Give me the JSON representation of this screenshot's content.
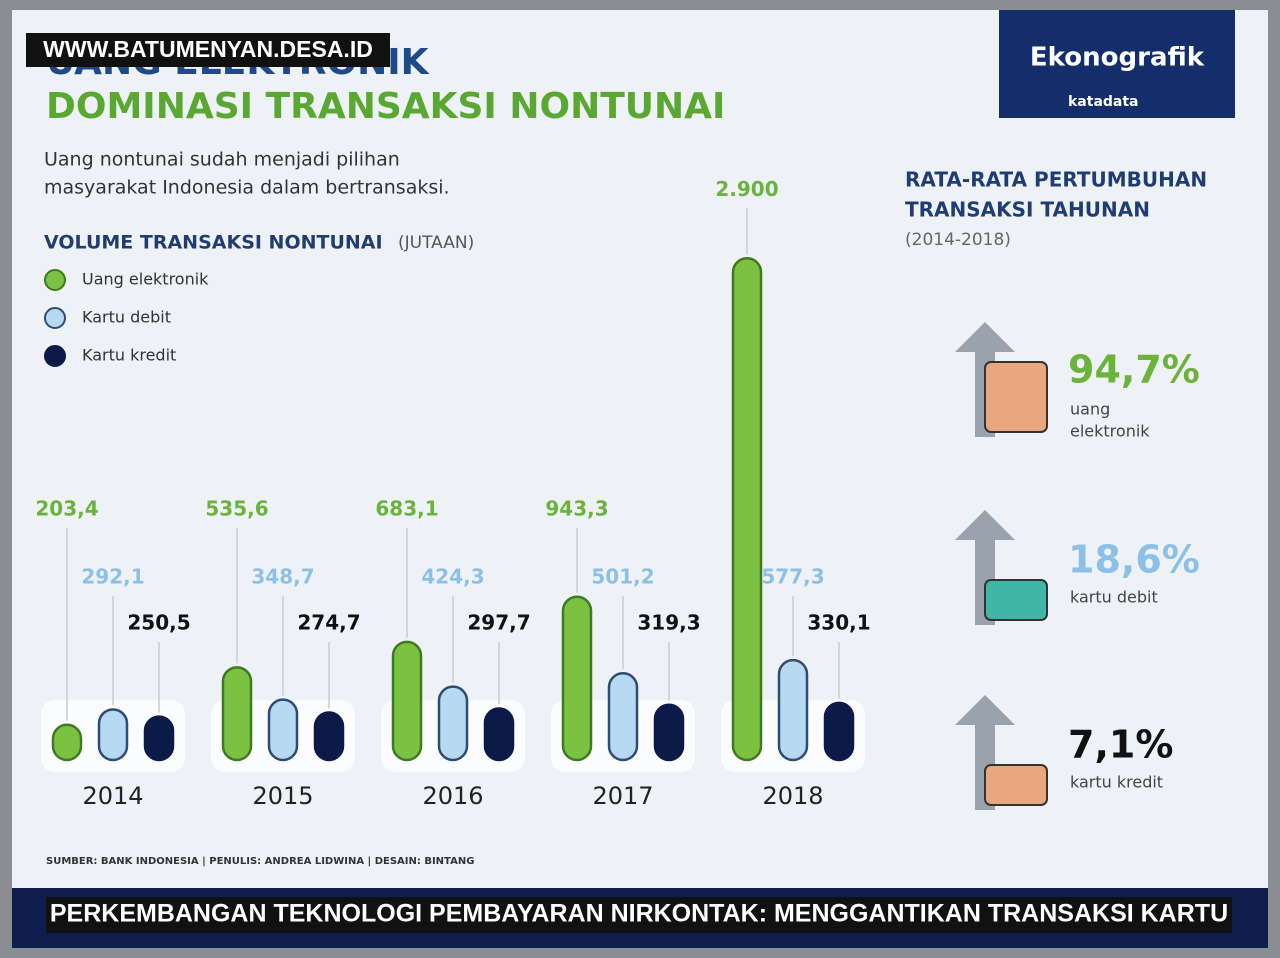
{
  "watermark": "WWW.BATUMENYAN.DESA.ID",
  "header": {
    "kicker": "UANG ELEKTRONIK",
    "title": "DOMINASI TRANSAKSI NONTUNAI",
    "subtitle_lines": [
      "Uang nontunai sudah menjadi pilihan",
      "masyarakat Indonesia dalam bertransaksi."
    ],
    "badge": "Ekonografik",
    "brand": "katadata"
  },
  "chart_data": {
    "type": "bar",
    "title": "VOLUME TRANSAKSI NONTUNAI",
    "unit": "(JUTAAN)",
    "categories": [
      "2014",
      "2015",
      "2016",
      "2017",
      "2018"
    ],
    "ylim": [
      0,
      3000
    ],
    "series": [
      {
        "name": "Uang elektronik",
        "color": "#7cc242",
        "values": [
          203.4,
          535.6,
          683.1,
          943.3,
          2900
        ],
        "value_labels": [
          "203,4",
          "535,6",
          "683,1",
          "943,3",
          "2.900"
        ]
      },
      {
        "name": "Kartu debit",
        "color": "#b8d9f2",
        "values": [
          292.1,
          348.7,
          424.3,
          501.2,
          577.3
        ],
        "value_labels": [
          "292,1",
          "348,7",
          "424,3",
          "501,2",
          "577,3"
        ]
      },
      {
        "name": "Kartu kredit",
        "color": "#0c1a48",
        "values": [
          250.5,
          274.7,
          297.7,
          319.3,
          330.1
        ],
        "value_labels": [
          "250,5",
          "274,7",
          "297,7",
          "319,3",
          "330,1"
        ]
      }
    ]
  },
  "growth": {
    "title_lines": [
      "RATA-RATA PERTUMBUHAN",
      "TRANSAKSI TAHUNAN"
    ],
    "period": "(2014-2018)",
    "items": [
      {
        "label": "94,7%",
        "name_lines": [
          "uang",
          "elektronik"
        ]
      },
      {
        "label": "18,6%",
        "name_lines": [
          "kartu debit"
        ]
      },
      {
        "label": "7,1%",
        "name_lines": [
          "kartu kredit"
        ]
      }
    ]
  },
  "source": "SUMBER: BANK INDONESIA  |  PENULIS: ANDREA LIDWINA  |  DESAIN: BINTANG",
  "caption": "PERKEMBANGAN TEKNOLOGI PEMBAYARAN NIRKONTAK: MENGGANTIKAN TRANSAKSI KARTU"
}
